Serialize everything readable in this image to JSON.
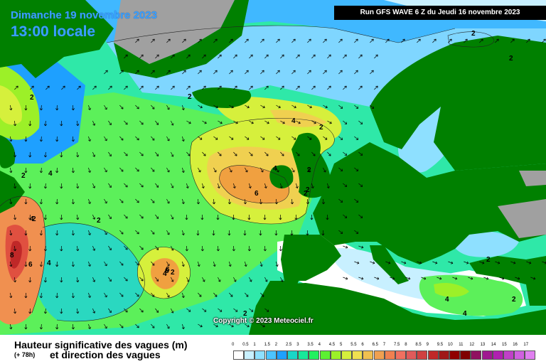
{
  "header": {
    "date": "Dimanche 19 novembre 2023",
    "local_time": "13:00 locale",
    "run_info": "Run GFS WAVE 6 Z du Jeudi 16 novembre 2023"
  },
  "copyright": "Copyright © 2023 Meteociel.fr",
  "legend": {
    "title_line1": "Hauteur significative des vagues (m)",
    "lead_time": "(+ 78h)",
    "title_line2": "et direction des vagues",
    "ticks": [
      "0",
      "0.5",
      "1",
      "1.5",
      "2",
      "2.5",
      "3",
      "3.5",
      "4",
      "4.5",
      "5",
      "5.5",
      "6",
      "6.5",
      "7",
      "7.5",
      "8",
      "8.5",
      "9",
      "9.5",
      "10",
      "11",
      "12",
      "13",
      "14",
      "15",
      "16",
      "17"
    ],
    "colors": [
      "#ffffff",
      "#c8f0ff",
      "#8ee0ff",
      "#4cc4ff",
      "#1ea0ff",
      "#19d6c8",
      "#18e89a",
      "#22f060",
      "#5cf032",
      "#9cf028",
      "#d6f03c",
      "#f0e050",
      "#f0c050",
      "#f0a050",
      "#f08050",
      "#f07060",
      "#e05a5a",
      "#d04040",
      "#c02828",
      "#a01818",
      "#900000",
      "#800000",
      "#901060",
      "#a01890",
      "#b020b0",
      "#c040c8",
      "#d060e0",
      "#e080f0"
    ]
  },
  "map": {
    "colors": {
      "land": "#008000",
      "ice": "#a0a0a0",
      "sea_calm": "#d8f4ff",
      "sea_low": "#40c0ff",
      "sea_mid": "#20e090",
      "sea_green": "#40f040",
      "sea_yellow": "#d0f040",
      "sea_orange": "#f0a040",
      "sea_red": "#e05040"
    },
    "contour_labels": [
      {
        "text": "2"
      },
      {
        "text": "4"
      },
      {
        "text": "2"
      },
      {
        "text": "2"
      },
      {
        "text": "4"
      },
      {
        "text": "6"
      },
      {
        "text": "8"
      },
      {
        "text": "6"
      },
      {
        "text": "4"
      },
      {
        "text": "2"
      },
      {
        "text": "2"
      },
      {
        "text": "4"
      },
      {
        "text": "2"
      },
      {
        "text": "6"
      },
      {
        "text": "4"
      },
      {
        "text": "2"
      },
      {
        "text": "2"
      },
      {
        "text": "4"
      },
      {
        "text": "4"
      },
      {
        "text": "6"
      },
      {
        "text": "2"
      },
      {
        "text": "2"
      },
      {
        "text": "2"
      },
      {
        "text": "2"
      },
      {
        "text": "4"
      },
      {
        "text": "2"
      },
      {
        "text": "2"
      },
      {
        "text": "2"
      }
    ]
  }
}
